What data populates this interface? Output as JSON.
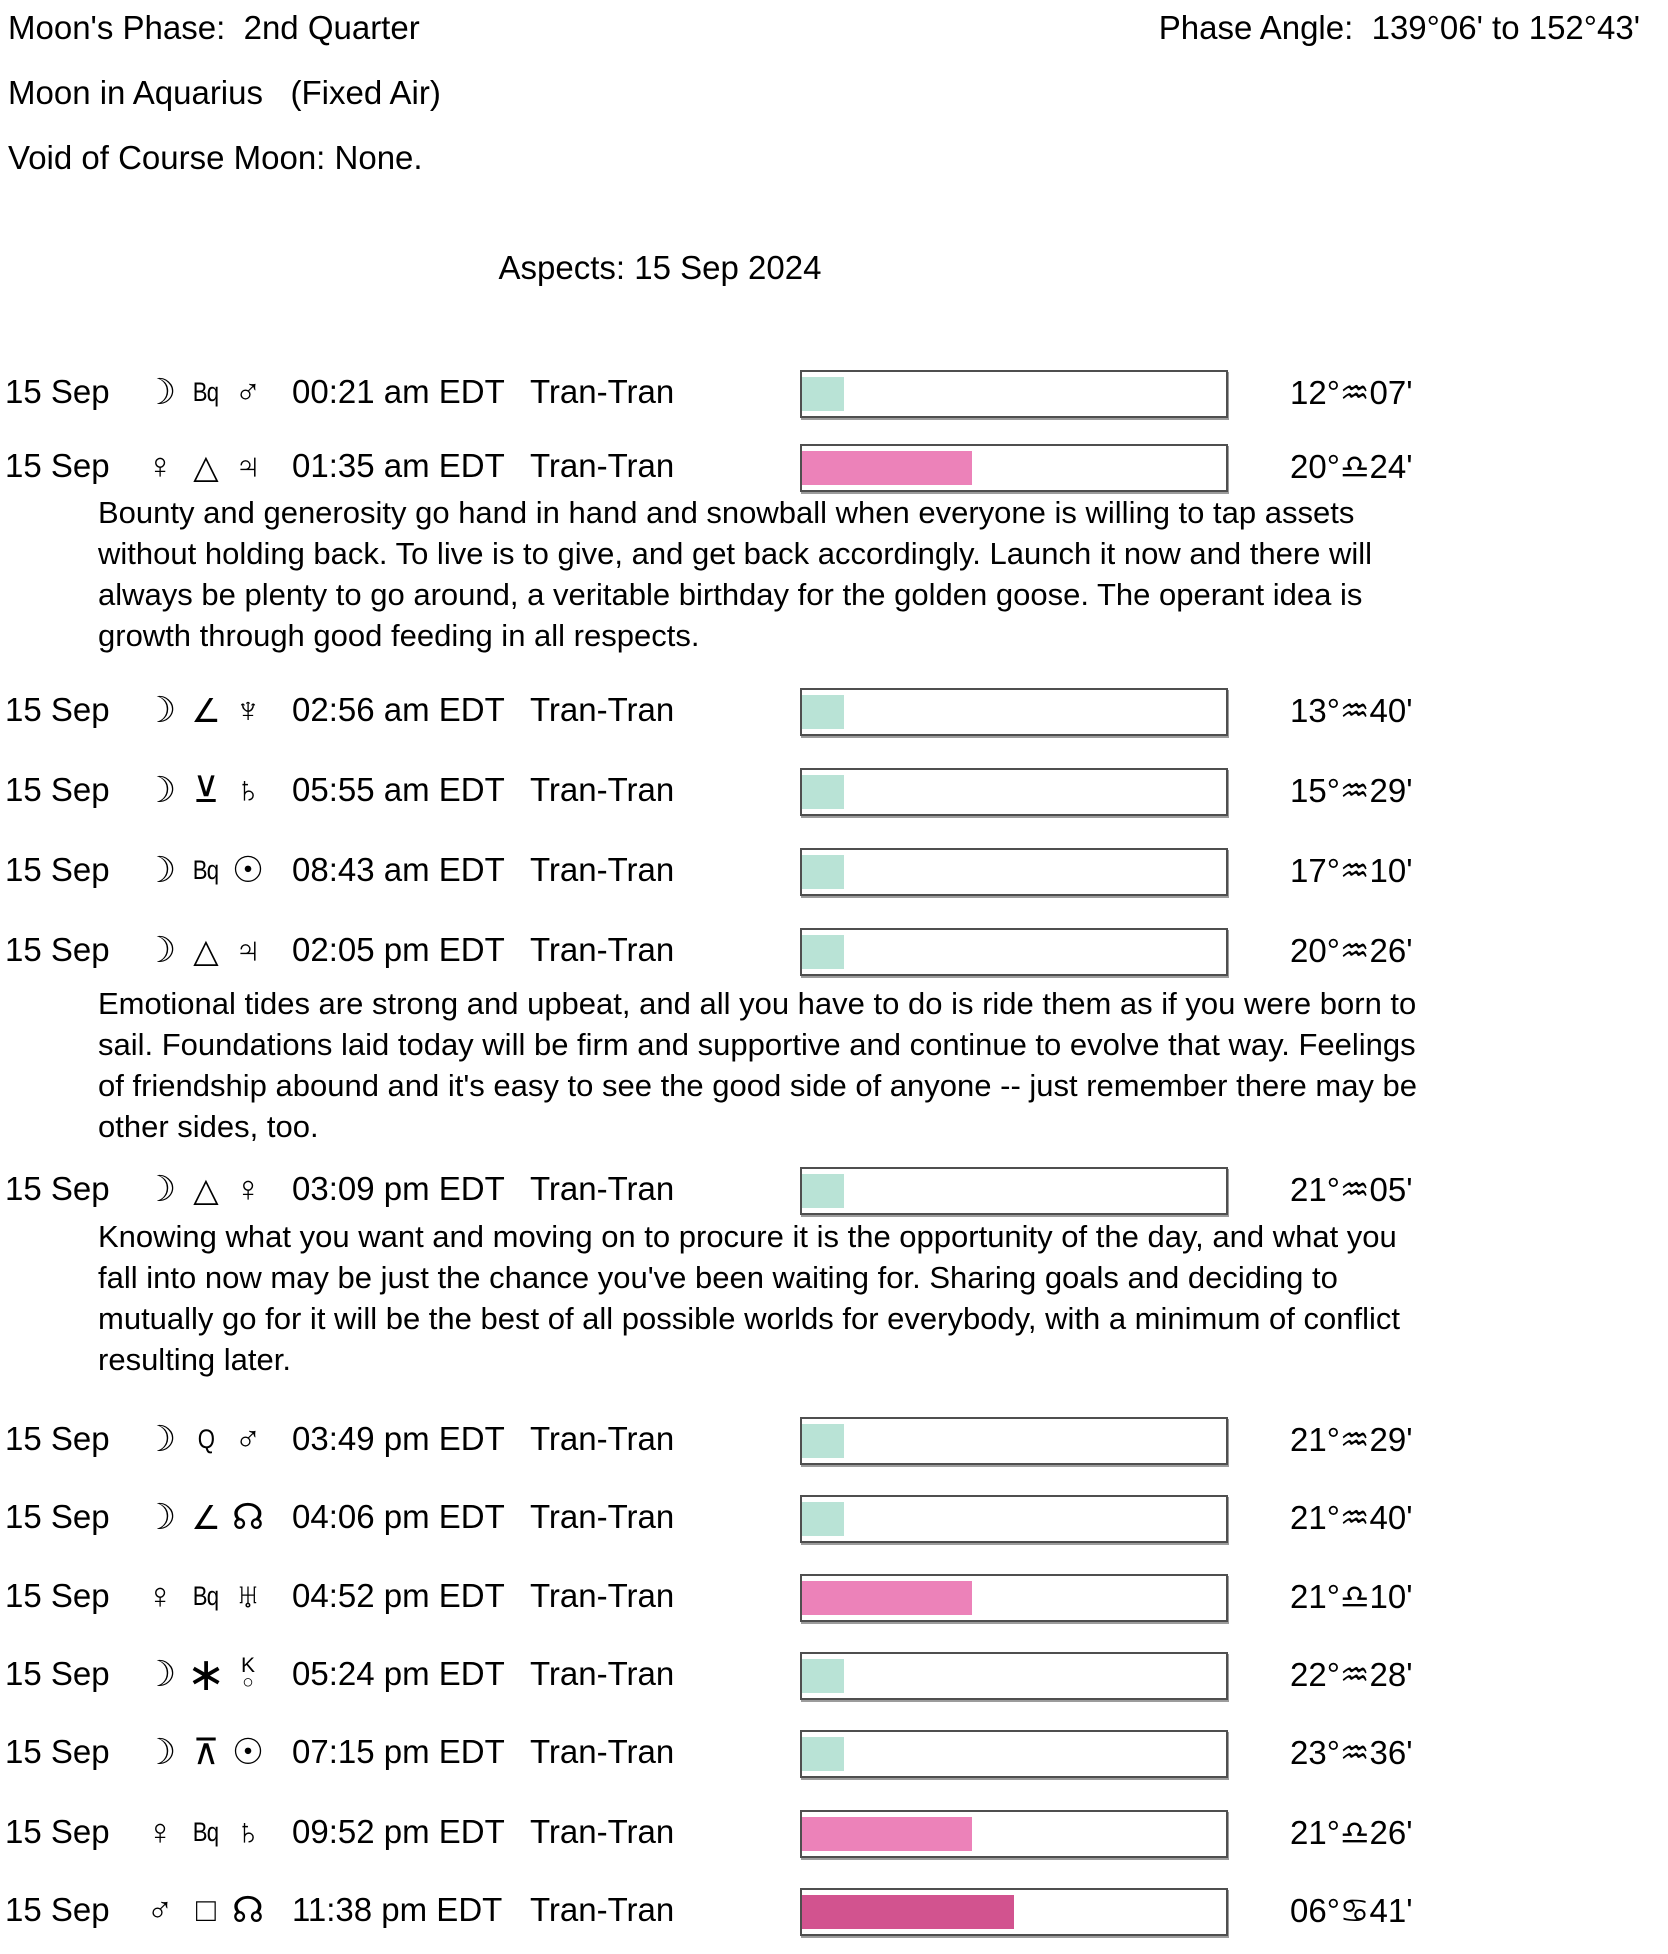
{
  "header": {
    "moon_phase": "Moon's Phase:  2nd Quarter",
    "moon_sign": "Moon in Aquarius   (Fixed Air)",
    "void_of_course": "Void of Course Moon: None.",
    "phase_angle": "Phase Angle:  139°06' to 152°43'"
  },
  "title": "Aspects: 15 Sep 2024",
  "colors": {
    "teal": "#b9e3d6",
    "pink": "#ec82b9",
    "magenta": "#d2538f"
  },
  "aspects": [
    {
      "date": "15 Sep",
      "p1": {
        "glyph": "☽",
        "name": "moon"
      },
      "aspect": {
        "glyph": "Bq",
        "name": "biquintile",
        "text": true
      },
      "p2": {
        "glyph": "♂",
        "name": "mars"
      },
      "time": "00:21 am EDT",
      "type": "Tran-Tran",
      "bar": {
        "percent": 10,
        "color": "teal"
      },
      "position": "12°♒07'"
    },
    {
      "date": "15 Sep",
      "p1": {
        "glyph": "♀",
        "name": "venus"
      },
      "aspect": {
        "glyph": "△",
        "name": "trine"
      },
      "p2": {
        "glyph": "♃",
        "name": "jupiter"
      },
      "time": "01:35 am EDT",
      "type": "Tran-Tran",
      "bar": {
        "percent": 40,
        "color": "pink"
      },
      "position": "20°♎24'",
      "description": "Bounty and generosity go hand in hand and snowball when everyone is willing to tap assets without holding back. To live is to give, and get back accordingly. Launch it now and there will always be plenty to go around, a veritable birthday for the golden goose. The operant idea is growth through good feeding in all respects."
    },
    {
      "date": "15 Sep",
      "p1": {
        "glyph": "☽",
        "name": "moon"
      },
      "aspect": {
        "glyph": "∠",
        "name": "semisquare"
      },
      "p2": {
        "glyph": "♆",
        "name": "neptune"
      },
      "time": "02:56 am EDT",
      "type": "Tran-Tran",
      "bar": {
        "percent": 10,
        "color": "teal"
      },
      "position": "13°♒40'"
    },
    {
      "date": "15 Sep",
      "p1": {
        "glyph": "☽",
        "name": "moon"
      },
      "aspect": {
        "glyph": "⊻",
        "name": "semisextile"
      },
      "p2": {
        "glyph": "♄",
        "name": "saturn"
      },
      "time": "05:55 am EDT",
      "type": "Tran-Tran",
      "bar": {
        "percent": 10,
        "color": "teal"
      },
      "position": "15°♒29'"
    },
    {
      "date": "15 Sep",
      "p1": {
        "glyph": "☽",
        "name": "moon"
      },
      "aspect": {
        "glyph": "Bq",
        "name": "biquintile",
        "text": true
      },
      "p2": {
        "glyph": "☉",
        "name": "sun"
      },
      "time": "08:43 am EDT",
      "type": "Tran-Tran",
      "bar": {
        "percent": 10,
        "color": "teal"
      },
      "position": "17°♒10'"
    },
    {
      "date": "15 Sep",
      "p1": {
        "glyph": "☽",
        "name": "moon"
      },
      "aspect": {
        "glyph": "△",
        "name": "trine"
      },
      "p2": {
        "glyph": "♃",
        "name": "jupiter"
      },
      "time": "02:05 pm EDT",
      "type": "Tran-Tran",
      "bar": {
        "percent": 10,
        "color": "teal"
      },
      "position": "20°♒26'",
      "description": "Emotional tides are strong and upbeat, and all you have to do is ride them as if you were born to sail. Foundations laid today will be firm and supportive and continue to evolve that way. Feelings of friendship abound and it's easy to see the good side of anyone -- just remember there may be other sides, too."
    },
    {
      "date": "15 Sep",
      "p1": {
        "glyph": "☽",
        "name": "moon"
      },
      "aspect": {
        "glyph": "△",
        "name": "trine"
      },
      "p2": {
        "glyph": "♀",
        "name": "venus"
      },
      "time": "03:09 pm EDT",
      "type": "Tran-Tran",
      "bar": {
        "percent": 10,
        "color": "teal"
      },
      "position": "21°♒05'",
      "description": "Knowing what you want and moving on to procure it is the opportunity of the day, and what you fall into now may be just the chance you've been waiting for. Sharing goals and deciding to mutually go for it will be the best of all possible worlds for everybody, with a minimum of conflict resulting later."
    },
    {
      "date": "15 Sep",
      "p1": {
        "glyph": "☽",
        "name": "moon"
      },
      "aspect": {
        "glyph": "Q",
        "name": "quintile",
        "text": true
      },
      "p2": {
        "glyph": "♂",
        "name": "mars"
      },
      "time": "03:49 pm EDT",
      "type": "Tran-Tran",
      "bar": {
        "percent": 10,
        "color": "teal"
      },
      "position": "21°♒29'"
    },
    {
      "date": "15 Sep",
      "p1": {
        "glyph": "☽",
        "name": "moon"
      },
      "aspect": {
        "glyph": "∠",
        "name": "semisquare"
      },
      "p2": {
        "glyph": "☊",
        "name": "north-node"
      },
      "time": "04:06 pm EDT",
      "type": "Tran-Tran",
      "bar": {
        "percent": 10,
        "color": "teal"
      },
      "position": "21°♒40'"
    },
    {
      "date": "15 Sep",
      "p1": {
        "glyph": "♀",
        "name": "venus"
      },
      "aspect": {
        "glyph": "Bq",
        "name": "biquintile",
        "text": true
      },
      "p2": {
        "glyph": "♅",
        "name": "uranus"
      },
      "time": "04:52 pm EDT",
      "type": "Tran-Tran",
      "bar": {
        "percent": 40,
        "color": "pink"
      },
      "position": "21°♎10'"
    },
    {
      "date": "15 Sep",
      "p1": {
        "glyph": "☽",
        "name": "moon"
      },
      "aspect": {
        "glyph": "∗",
        "name": "sextile"
      },
      "p2": {
        "glyph": "⚷",
        "name": "chiron"
      },
      "time": "05:24 pm EDT",
      "type": "Tran-Tran",
      "bar": {
        "percent": 10,
        "color": "teal"
      },
      "position": "22°♒28'"
    },
    {
      "date": "15 Sep",
      "p1": {
        "glyph": "☽",
        "name": "moon"
      },
      "aspect": {
        "glyph": "⊼",
        "name": "quincunx"
      },
      "p2": {
        "glyph": "☉",
        "name": "sun"
      },
      "time": "07:15 pm EDT",
      "type": "Tran-Tran",
      "bar": {
        "percent": 10,
        "color": "teal"
      },
      "position": "23°♒36'"
    },
    {
      "date": "15 Sep",
      "p1": {
        "glyph": "♀",
        "name": "venus"
      },
      "aspect": {
        "glyph": "Bq",
        "name": "biquintile",
        "text": true
      },
      "p2": {
        "glyph": "♄",
        "name": "saturn"
      },
      "time": "09:52 pm EDT",
      "type": "Tran-Tran",
      "bar": {
        "percent": 40,
        "color": "pink"
      },
      "position": "21°♎26'"
    },
    {
      "date": "15 Sep",
      "p1": {
        "glyph": "♂",
        "name": "mars"
      },
      "aspect": {
        "glyph": "□",
        "name": "square"
      },
      "p2": {
        "glyph": "☊",
        "name": "north-node"
      },
      "time": "11:38 pm EDT",
      "type": "Tran-Tran",
      "bar": {
        "percent": 50,
        "color": "magenta"
      },
      "position": "06°♋41'"
    }
  ]
}
